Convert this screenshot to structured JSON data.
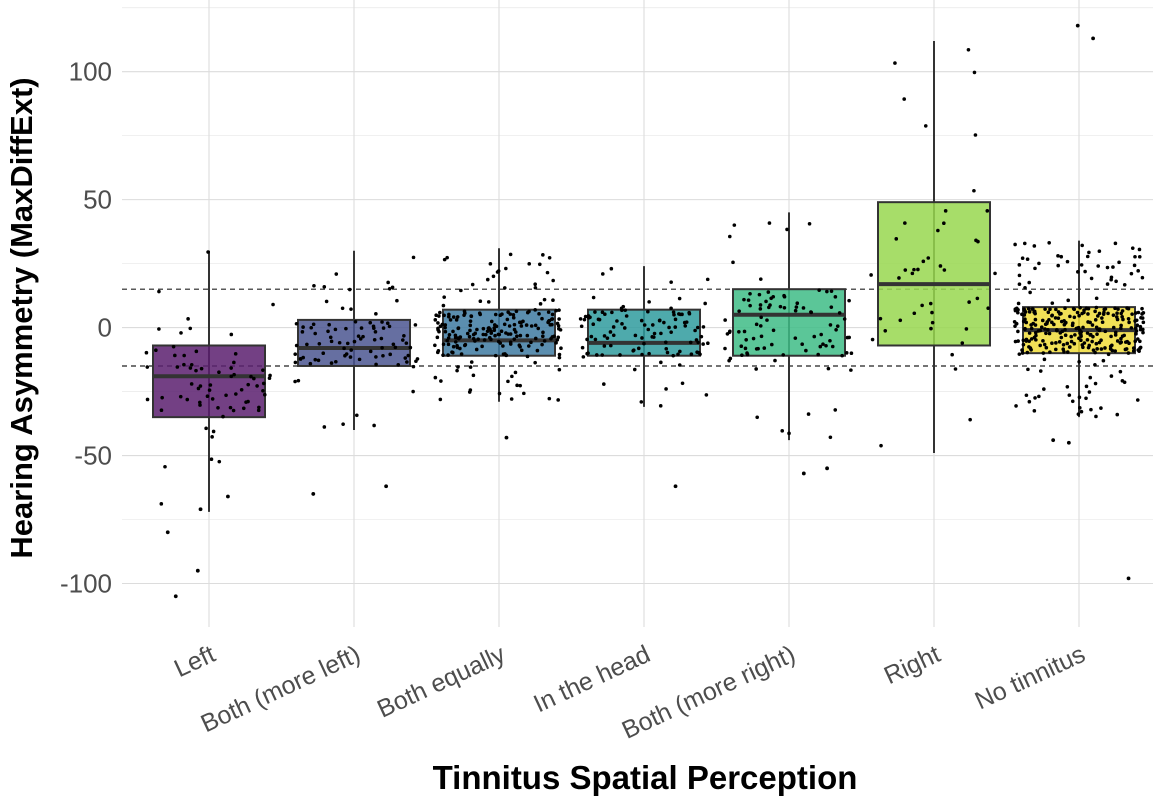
{
  "chart_data": {
    "type": "boxplot",
    "xlabel": "Tinnitus Spatial Perception",
    "ylabel": "Hearing Asymmetry (MaxDiffExt)",
    "ylim": [
      -117,
      128
    ],
    "yticks": [
      -100,
      -50,
      0,
      50,
      100
    ],
    "grid": true,
    "reference_lines": [
      15,
      -15
    ],
    "categories": [
      "Left",
      "Both (more left)",
      "Both equally",
      "In the head",
      "Both (more right)",
      "Right",
      "No tinnitus"
    ],
    "colors": [
      "#5b1f6e",
      "#4b5690",
      "#3e7aa1",
      "#2f9b9d",
      "#3ebc86",
      "#98d74f",
      "#f0dc3a"
    ],
    "boxes": [
      {
        "q1": -35,
        "median": -19,
        "q3": -7,
        "whisker_low": -72,
        "whisker_high": 30
      },
      {
        "q1": -15,
        "median": -8,
        "q3": 3,
        "whisker_low": -40,
        "whisker_high": 30
      },
      {
        "q1": -11,
        "median": -5,
        "q3": 7,
        "whisker_low": -29,
        "whisker_high": 31
      },
      {
        "q1": -11,
        "median": -6,
        "q3": 7,
        "whisker_low": -31,
        "whisker_high": 24
      },
      {
        "q1": -11,
        "median": 5,
        "q3": 15,
        "whisker_low": -44,
        "whisker_high": 45
      },
      {
        "q1": -7,
        "median": 17,
        "q3": 49,
        "whisker_low": -49,
        "whisker_high": 112
      },
      {
        "q1": -10,
        "median": -1,
        "q3": 8,
        "whisker_low": -35,
        "whisker_high": 34
      }
    ],
    "outliers": [
      {
        "category": "Left",
        "values": [
          -105,
          -95,
          -80,
          -71,
          -66
        ]
      },
      {
        "category": "Both (more left)",
        "values": [
          -62,
          -65
        ]
      },
      {
        "category": "Both equally",
        "values": [
          -43
        ]
      },
      {
        "category": "In the head",
        "values": [
          -62
        ]
      },
      {
        "category": "Both (more right)",
        "values": [
          -55,
          -57
        ]
      },
      {
        "category": "No tinnitus",
        "values": [
          118,
          113,
          -98,
          -44,
          -45
        ]
      }
    ]
  }
}
